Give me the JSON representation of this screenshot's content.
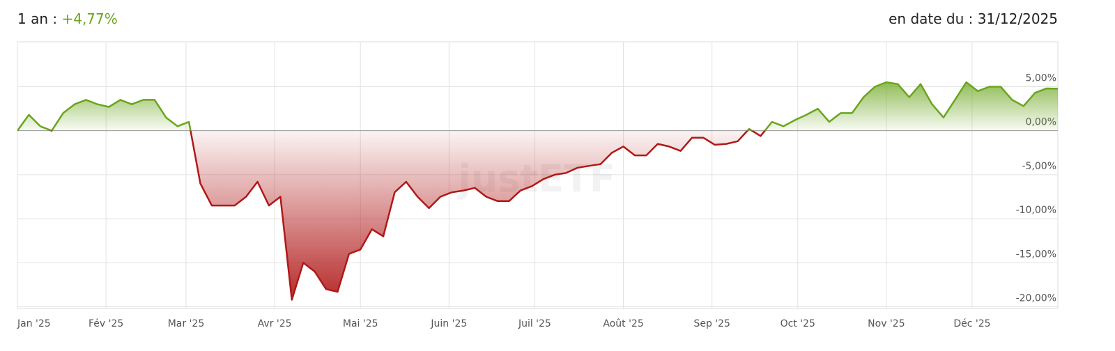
{
  "chart_data": {
    "type": "line",
    "performance_label": "1 an :",
    "performance": "+4,77%",
    "date": "en date du : 31/12/2025",
    "watermark": "justETF",
    "xlim": [
      0,
      91
    ],
    "xticks": [
      {
        "value": 0,
        "label": "Jan '25"
      },
      {
        "value": 7.75,
        "label": "Fév '25"
      },
      {
        "value": 14.75,
        "label": "Mar '25"
      },
      {
        "value": 22.5,
        "label": "Avr '25"
      },
      {
        "value": 30,
        "label": "Mai '25"
      },
      {
        "value": 37.75,
        "label": "Juin '25"
      },
      {
        "value": 45.25,
        "label": "Juil '25"
      },
      {
        "value": 53,
        "label": "Août '25"
      },
      {
        "value": 60.75,
        "label": "Sep '25"
      },
      {
        "value": 68.25,
        "label": "Oct '25"
      },
      {
        "value": 76,
        "label": "Nov '25"
      },
      {
        "value": 83.5,
        "label": "Déc '25"
      }
    ],
    "ylim": [
      -20.2,
      10.1
    ],
    "yticks": [
      {
        "value": -20,
        "label": "-20,00%"
      },
      {
        "value": -15,
        "label": "-15,00%"
      },
      {
        "value": -10,
        "label": "-10,00%"
      },
      {
        "value": -5,
        "label": "-5,00%"
      },
      {
        "value": 0,
        "label": "0,00%"
      },
      {
        "value": 5,
        "label": "5,00%"
      }
    ],
    "grid": true,
    "positive_color": "#6aa51c",
    "negative_color": "#b01818",
    "values": [
      0,
      1.8,
      0.5,
      0,
      2.0,
      3.0,
      3.5,
      3.0,
      2.7,
      3.5,
      3.0,
      3.5,
      3.5,
      1.5,
      0.5,
      1.0,
      -6.0,
      -8.5,
      -8.5,
      -8.5,
      -7.5,
      -5.8,
      -8.5,
      -7.5,
      -19.2,
      -15,
      -16,
      -18,
      -18.3,
      -14,
      -13.5,
      -11.2,
      -12,
      -7,
      -5.8,
      -7.5,
      -8.8,
      -7.5,
      -7,
      -6.8,
      -6.5,
      -7.5,
      -8,
      -8,
      -6.8,
      -6.3,
      -5.5,
      -5,
      -4.8,
      -4.2,
      -4,
      -3.8,
      -2.5,
      -1.8,
      -2.8,
      -2.8,
      -1.5,
      -1.8,
      -2.3,
      -0.8,
      -0.8,
      -1.6,
      -1.5,
      -1.2,
      0.2,
      -0.6,
      1.0,
      0.5,
      1.2,
      1.8,
      2.5,
      1.0,
      2.0,
      2.0,
      3.8,
      5.0,
      5.5,
      5.3,
      3.8,
      5.3,
      3.0,
      1.5,
      3.5,
      5.5,
      4.5,
      5.0,
      5.0,
      3.5,
      2.8,
      4.3,
      4.8,
      4.77
    ]
  }
}
